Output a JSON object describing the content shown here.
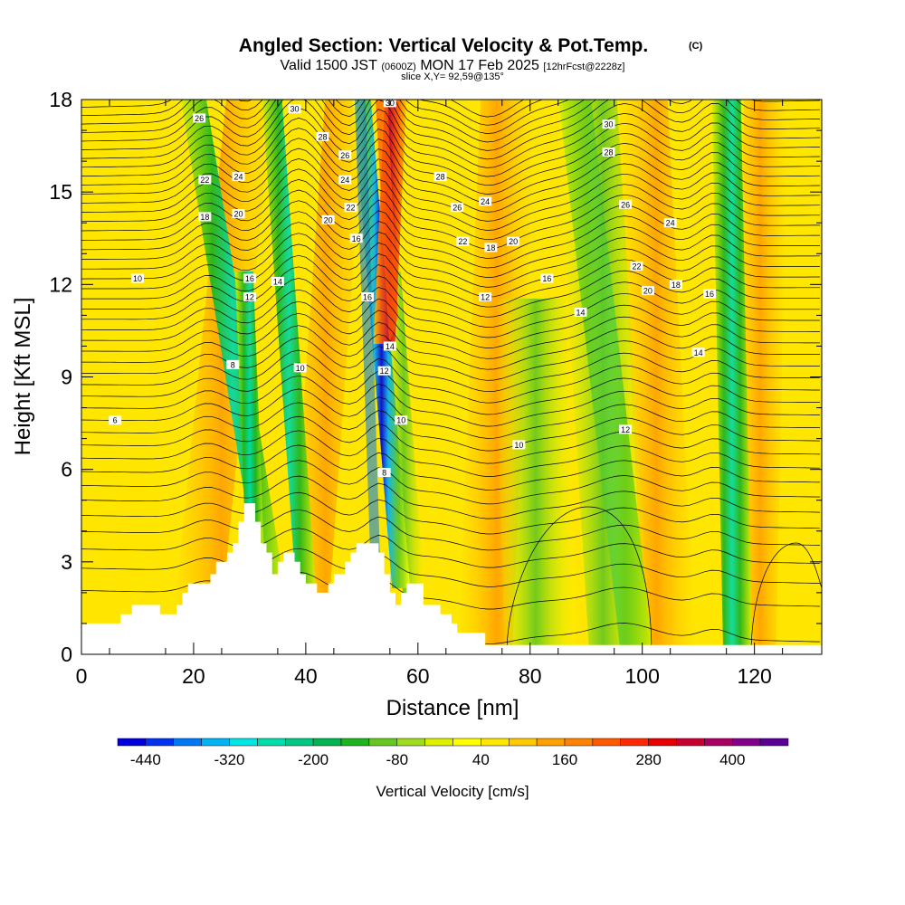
{
  "header": {
    "title": "Angled Section: Vertical Velocity & Pot.Temp.",
    "title_tag": "(C)",
    "valid_a": "Valid 1500 JST",
    "valid_b": "(0600Z)",
    "valid_c": "MON 17 Feb 2025",
    "valid_d": "[12hrFcst@2228z]",
    "slice": "slice X,Y= 92,59@135°"
  },
  "chart_data": {
    "type": "heatmap",
    "xlabel": "Distance [nm]",
    "ylabel": "Height [Kft MSL]",
    "xlim": [
      0,
      132
    ],
    "ylim": [
      0,
      18
    ],
    "x_ticks": [
      "0",
      "20",
      "40",
      "60",
      "80",
      "100",
      "120"
    ],
    "y_ticks": [
      "0",
      "3",
      "6",
      "9",
      "12",
      "15",
      "18"
    ],
    "colorbar": {
      "label": "Vertical Velocity [cm/s]",
      "tick_labels": [
        "-440",
        "-320",
        "-200",
        "-80",
        "40",
        "160",
        "280",
        "400"
      ],
      "levels": [
        -480,
        -440,
        -400,
        -360,
        -320,
        -280,
        -240,
        -200,
        -160,
        -120,
        -80,
        -40,
        0,
        40,
        80,
        120,
        160,
        200,
        240,
        280,
        320,
        360,
        400,
        440,
        480
      ],
      "colors": [
        "#0000dc",
        "#0032f0",
        "#0078f5",
        "#00b4f5",
        "#00e6e6",
        "#00dcaa",
        "#00c882",
        "#00b450",
        "#1eb41e",
        "#64c81e",
        "#a0dc1e",
        "#dcf000",
        "#ffff00",
        "#ffe600",
        "#ffc800",
        "#ffa000",
        "#ff8200",
        "#ff5a00",
        "#ff2800",
        "#e60000",
        "#c80032",
        "#aa0064",
        "#82008c",
        "#5a0096"
      ]
    },
    "terrain_kft": [
      [
        0,
        1.0
      ],
      [
        5,
        1.0
      ],
      [
        7,
        1.3
      ],
      [
        9,
        1.6
      ],
      [
        13,
        1.6
      ],
      [
        14,
        1.3
      ],
      [
        16,
        1.3
      ],
      [
        17,
        1.6
      ],
      [
        18,
        2.0
      ],
      [
        19,
        2.3
      ],
      [
        22,
        2.3
      ],
      [
        23,
        2.6
      ],
      [
        24,
        3.0
      ],
      [
        25,
        3.0
      ],
      [
        26,
        3.3
      ],
      [
        27,
        3.6
      ],
      [
        28,
        4.3
      ],
      [
        29,
        4.9
      ],
      [
        30,
        4.9
      ],
      [
        31,
        4.3
      ],
      [
        32,
        3.6
      ],
      [
        33,
        3.3
      ],
      [
        34,
        2.6
      ],
      [
        35,
        3.0
      ],
      [
        36,
        3.3
      ],
      [
        37,
        3.3
      ],
      [
        38,
        3.0
      ],
      [
        39,
        2.6
      ],
      [
        40,
        2.3
      ],
      [
        41,
        2.3
      ],
      [
        42,
        2.0
      ],
      [
        43,
        2.0
      ],
      [
        44,
        2.3
      ],
      [
        45,
        2.6
      ],
      [
        46,
        2.6
      ],
      [
        47,
        3.0
      ],
      [
        48,
        3.3
      ],
      [
        49,
        3.6
      ],
      [
        52,
        3.6
      ],
      [
        53,
        3.3
      ],
      [
        54,
        2.6
      ],
      [
        55,
        2.0
      ],
      [
        56,
        1.6
      ],
      [
        57,
        2.0
      ],
      [
        58,
        2.3
      ],
      [
        60,
        2.3
      ],
      [
        61,
        1.6
      ],
      [
        62,
        1.6
      ],
      [
        64,
        1.3
      ],
      [
        66,
        1.0
      ],
      [
        67,
        0.7
      ],
      [
        71,
        0.7
      ],
      [
        72,
        0.3
      ],
      [
        132,
        0.3
      ]
    ],
    "contour_labels": [
      {
        "x": 21,
        "y": 17.4,
        "text": "26"
      },
      {
        "x": 38,
        "y": 17.7,
        "text": "30"
      },
      {
        "x": 55,
        "y": 17.9,
        "text": "30"
      },
      {
        "x": 94,
        "y": 17.2,
        "text": "30"
      },
      {
        "x": 43,
        "y": 16.8,
        "text": "28"
      },
      {
        "x": 47,
        "y": 16.2,
        "text": "26"
      },
      {
        "x": 94,
        "y": 16.3,
        "text": "28"
      },
      {
        "x": 22,
        "y": 15.4,
        "text": "22"
      },
      {
        "x": 28,
        "y": 15.5,
        "text": "24"
      },
      {
        "x": 47,
        "y": 15.4,
        "text": "24"
      },
      {
        "x": 64,
        "y": 15.5,
        "text": "28"
      },
      {
        "x": 48,
        "y": 14.5,
        "text": "22"
      },
      {
        "x": 67,
        "y": 14.5,
        "text": "26"
      },
      {
        "x": 72,
        "y": 14.7,
        "text": "24"
      },
      {
        "x": 97,
        "y": 14.6,
        "text": "26"
      },
      {
        "x": 22,
        "y": 14.2,
        "text": "18"
      },
      {
        "x": 28,
        "y": 14.3,
        "text": "20"
      },
      {
        "x": 44,
        "y": 14.1,
        "text": "20"
      },
      {
        "x": 105,
        "y": 14.0,
        "text": "24"
      },
      {
        "x": 49,
        "y": 13.5,
        "text": "16"
      },
      {
        "x": 68,
        "y": 13.4,
        "text": "22"
      },
      {
        "x": 73,
        "y": 13.2,
        "text": "18"
      },
      {
        "x": 77,
        "y": 13.4,
        "text": "20"
      },
      {
        "x": 30,
        "y": 12.2,
        "text": "16"
      },
      {
        "x": 35,
        "y": 12.1,
        "text": "14"
      },
      {
        "x": 10,
        "y": 12.2,
        "text": "10"
      },
      {
        "x": 83,
        "y": 12.2,
        "text": "16"
      },
      {
        "x": 99,
        "y": 12.6,
        "text": "22"
      },
      {
        "x": 101,
        "y": 11.8,
        "text": "20"
      },
      {
        "x": 106,
        "y": 12.0,
        "text": "18"
      },
      {
        "x": 112,
        "y": 11.7,
        "text": "16"
      },
      {
        "x": 30,
        "y": 11.6,
        "text": "12"
      },
      {
        "x": 51,
        "y": 11.6,
        "text": "16"
      },
      {
        "x": 72,
        "y": 11.6,
        "text": "12"
      },
      {
        "x": 89,
        "y": 11.1,
        "text": "14"
      },
      {
        "x": 55,
        "y": 10.0,
        "text": "14"
      },
      {
        "x": 110,
        "y": 9.8,
        "text": "14"
      },
      {
        "x": 27,
        "y": 9.4,
        "text": "8"
      },
      {
        "x": 39,
        "y": 9.3,
        "text": "10"
      },
      {
        "x": 54,
        "y": 9.2,
        "text": "12"
      },
      {
        "x": 57,
        "y": 7.6,
        "text": "10"
      },
      {
        "x": 6,
        "y": 7.6,
        "text": "6"
      },
      {
        "x": 97,
        "y": 7.3,
        "text": "12"
      },
      {
        "x": 78,
        "y": 6.8,
        "text": "10"
      },
      {
        "x": 54,
        "y": 5.9,
        "text": "8"
      }
    ]
  }
}
